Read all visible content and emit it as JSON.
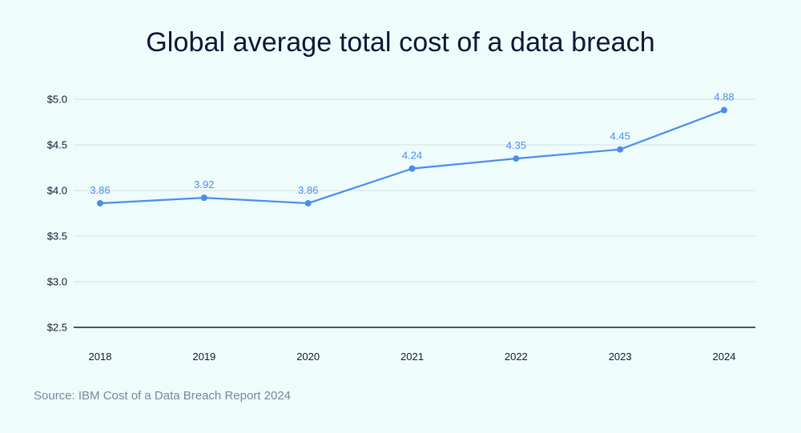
{
  "colors": {
    "background": "#effcfc",
    "title": "#0c1633",
    "line": "#4a8cf0",
    "grid": "#d3e2e6",
    "axis": "#111a2e",
    "source": "#7a8698"
  },
  "footer": {
    "source": "Source: IBM Cost of a Data Breach Report 2024"
  },
  "chart_data": {
    "type": "line",
    "title": "Global average total cost of a data breach",
    "xlabel": "",
    "ylabel": "",
    "x": [
      "2018",
      "2019",
      "2020",
      "2021",
      "2022",
      "2023",
      "2024"
    ],
    "series": [
      {
        "values": [
          3.86,
          3.92,
          3.86,
          4.24,
          4.35,
          4.45,
          4.88
        ],
        "labels": [
          "3.86",
          "3.92",
          "3.86",
          "4.24",
          "4.35",
          "4.45",
          "4.88"
        ]
      }
    ],
    "ylim": [
      2.5,
      5.0
    ],
    "yticks": [
      2.5,
      3.0,
      3.5,
      4.0,
      4.5,
      5.0
    ],
    "ytick_labels": [
      "$2.5",
      "$3.0",
      "$3.5",
      "$4.0",
      "$4.5",
      "$5.0"
    ],
    "grid": true,
    "markers": true,
    "data_labels": true
  }
}
